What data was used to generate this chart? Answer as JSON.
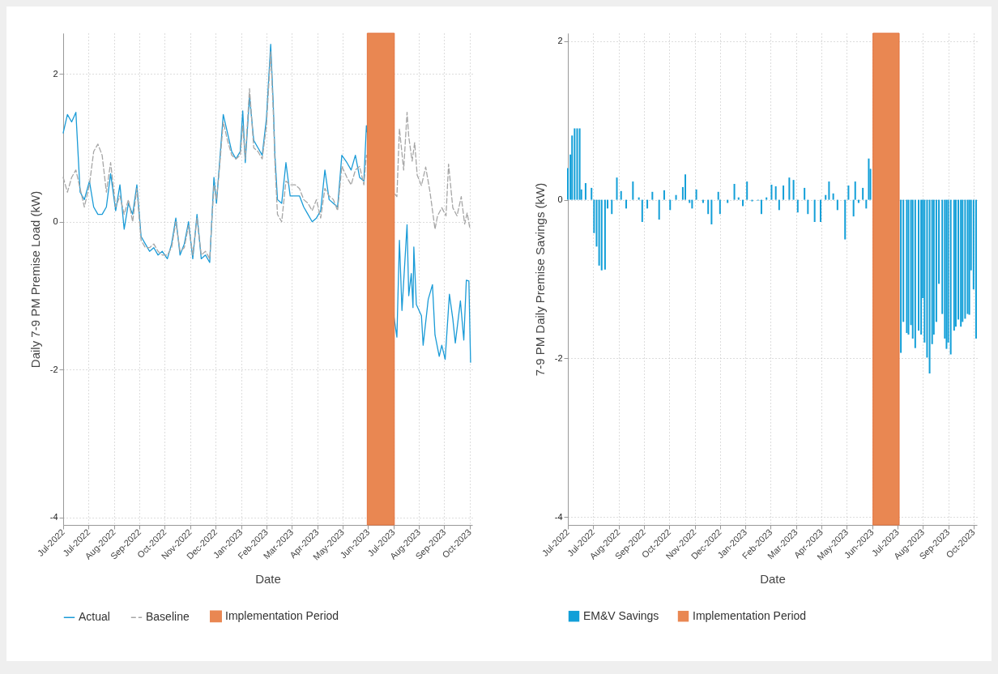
{
  "chart_data": [
    {
      "type": "line",
      "xlabel": "Date",
      "ylabel": "Daily 7-9 PM Premise Load (kW)",
      "xlim": [
        "2022-07-01",
        "2023-10-27"
      ],
      "xticks": [
        {
          "value": "2022-07-01",
          "label": "Jul-2022"
        },
        {
          "value": "2022-07-31",
          "label": "Jul-2022"
        },
        {
          "value": "2022-08-30",
          "label": "Aug-2022"
        },
        {
          "value": "2022-09-29",
          "label": "Sep-2022"
        },
        {
          "value": "2022-10-29",
          "label": "Oct-2022"
        },
        {
          "value": "2022-11-28",
          "label": "Nov-2022"
        },
        {
          "value": "2022-12-28",
          "label": "Dec-2022"
        },
        {
          "value": "2023-01-27",
          "label": "Jan-2023"
        },
        {
          "value": "2023-02-26",
          "label": "Feb-2023"
        },
        {
          "value": "2023-03-28",
          "label": "Mar-2023"
        },
        {
          "value": "2023-04-27",
          "label": "Apr-2023"
        },
        {
          "value": "2023-05-27",
          "label": "May-2023"
        },
        {
          "value": "2023-06-26",
          "label": "Jun-2023"
        },
        {
          "value": "2023-07-26",
          "label": "Jul-2023"
        },
        {
          "value": "2023-08-25",
          "label": "Aug-2023"
        },
        {
          "value": "2023-09-24",
          "label": "Sep-2023"
        },
        {
          "value": "2023-10-24",
          "label": "Oct-2023"
        }
      ],
      "ylim": [
        -4.1,
        2.55
      ],
      "yticks": [
        -4,
        -2,
        0,
        2
      ],
      "grid": true,
      "legend": "bottom",
      "series": [
        {
          "name": "Actual",
          "color": "#1a9bd7",
          "line_style": "solid",
          "x": [
            "2022-07-01",
            "2022-07-06",
            "2022-07-11",
            "2022-07-16",
            "2022-07-21",
            "2022-07-26",
            "2022-08-01",
            "2022-08-06",
            "2022-08-11",
            "2022-08-16",
            "2022-08-21",
            "2022-08-26",
            "2022-09-01",
            "2022-09-06",
            "2022-09-11",
            "2022-09-16",
            "2022-09-21",
            "2022-09-26",
            "2022-10-01",
            "2022-10-06",
            "2022-10-11",
            "2022-10-16",
            "2022-10-21",
            "2022-10-26",
            "2022-11-01",
            "2022-11-06",
            "2022-11-11",
            "2022-11-16",
            "2022-11-21",
            "2022-11-26",
            "2022-12-01",
            "2022-12-06",
            "2022-12-11",
            "2022-12-16",
            "2022-12-21",
            "2022-12-26",
            "2022-12-29",
            "2023-01-01",
            "2023-01-06",
            "2023-01-11",
            "2023-01-16",
            "2023-01-21",
            "2023-01-26",
            "2023-01-29",
            "2023-02-01",
            "2023-02-06",
            "2023-02-11",
            "2023-02-16",
            "2023-02-21",
            "2023-02-26",
            "2023-03-03",
            "2023-03-06",
            "2023-03-08",
            "2023-03-11",
            "2023-03-16",
            "2023-03-21",
            "2023-03-26",
            "2023-04-01",
            "2023-04-06",
            "2023-04-11",
            "2023-04-16",
            "2023-04-21",
            "2023-04-26",
            "2023-05-01",
            "2023-05-06",
            "2023-05-11",
            "2023-05-16",
            "2023-05-21",
            "2023-05-26",
            "2023-06-01",
            "2023-06-06",
            "2023-06-11",
            "2023-06-16",
            "2023-06-21",
            "2023-06-24",
            "2023-07-30",
            "2023-08-02",
            "2023-08-05",
            "2023-08-11",
            "2023-08-13",
            "2023-08-16",
            "2023-08-18",
            "2023-08-19",
            "2023-08-22",
            "2023-08-28",
            "2023-08-30",
            "2023-09-05",
            "2023-09-10",
            "2023-09-13",
            "2023-09-18",
            "2023-09-21",
            "2023-09-25",
            "2023-09-30",
            "2023-10-04",
            "2023-10-07",
            "2023-10-13",
            "2023-10-17",
            "2023-10-20",
            "2023-10-23",
            "2023-10-25"
          ],
          "values": [
            1.2,
            1.45,
            1.35,
            1.48,
            0.4,
            0.3,
            0.55,
            0.2,
            0.1,
            0.1,
            0.2,
            0.65,
            0.15,
            0.5,
            -0.1,
            0.25,
            0.1,
            0.5,
            -0.2,
            -0.3,
            -0.4,
            -0.35,
            -0.45,
            -0.4,
            -0.5,
            -0.3,
            0.05,
            -0.45,
            -0.3,
            0.0,
            -0.5,
            0.1,
            -0.5,
            -0.45,
            -0.55,
            0.6,
            0.25,
            0.7,
            1.45,
            1.2,
            0.95,
            0.85,
            0.95,
            1.5,
            0.8,
            1.7,
            1.1,
            1.0,
            0.9,
            1.4,
            2.4,
            1.6,
            0.9,
            0.3,
            0.25,
            0.8,
            0.35,
            0.35,
            0.35,
            0.2,
            0.1,
            0.0,
            0.05,
            0.15,
            0.7,
            0.3,
            0.25,
            0.2,
            0.9,
            0.8,
            0.7,
            0.9,
            0.6,
            0.55,
            1.3,
            -1.56,
            -0.25,
            -1.2,
            -0.04,
            -1.0,
            -0.7,
            -1.16,
            -0.34,
            -1.12,
            -1.27,
            -1.67,
            -1.05,
            -0.85,
            -1.53,
            -1.82,
            -1.67,
            -1.86,
            -0.98,
            -1.31,
            -1.64,
            -1.07,
            -1.6,
            -0.79,
            -0.8,
            -1.9
          ]
        },
        {
          "name": "Baseline",
          "color": "#a6a6a6",
          "line_style": "dashed",
          "x": [
            "2022-07-01",
            "2022-07-06",
            "2022-07-11",
            "2022-07-16",
            "2022-07-21",
            "2022-07-26",
            "2022-08-01",
            "2022-08-06",
            "2022-08-11",
            "2022-08-16",
            "2022-08-21",
            "2022-08-26",
            "2022-09-01",
            "2022-09-06",
            "2022-09-11",
            "2022-09-16",
            "2022-09-21",
            "2022-09-26",
            "2022-10-01",
            "2022-10-06",
            "2022-10-11",
            "2022-10-16",
            "2022-10-21",
            "2022-10-26",
            "2022-11-01",
            "2022-11-06",
            "2022-11-11",
            "2022-11-16",
            "2022-11-21",
            "2022-11-26",
            "2022-12-01",
            "2022-12-06",
            "2022-12-11",
            "2022-12-16",
            "2022-12-21",
            "2022-12-26",
            "2022-12-29",
            "2023-01-01",
            "2023-01-06",
            "2023-01-11",
            "2023-01-16",
            "2023-01-21",
            "2023-01-26",
            "2023-01-29",
            "2023-02-01",
            "2023-02-06",
            "2023-02-11",
            "2023-02-16",
            "2023-02-21",
            "2023-02-26",
            "2023-03-03",
            "2023-03-06",
            "2023-03-08",
            "2023-03-11",
            "2023-03-16",
            "2023-03-21",
            "2023-03-26",
            "2023-04-01",
            "2023-04-06",
            "2023-04-11",
            "2023-04-16",
            "2023-04-21",
            "2023-04-26",
            "2023-05-01",
            "2023-05-06",
            "2023-05-11",
            "2023-05-16",
            "2023-05-21",
            "2023-05-26",
            "2023-06-01",
            "2023-06-06",
            "2023-06-11",
            "2023-06-16",
            "2023-06-21",
            "2023-06-24",
            "2023-07-30",
            "2023-08-02",
            "2023-08-07",
            "2023-08-11",
            "2023-08-13",
            "2023-08-17",
            "2023-08-20",
            "2023-08-23",
            "2023-08-28",
            "2023-09-02",
            "2023-09-07",
            "2023-09-13",
            "2023-09-16",
            "2023-09-21",
            "2023-09-26",
            "2023-09-29",
            "2023-10-04",
            "2023-10-09",
            "2023-10-14",
            "2023-10-18",
            "2023-10-21",
            "2023-10-24"
          ],
          "values": [
            0.6,
            0.4,
            0.6,
            0.7,
            0.45,
            0.2,
            0.5,
            0.95,
            1.05,
            0.9,
            0.4,
            0.8,
            0.2,
            0.35,
            0.1,
            0.3,
            0.0,
            0.45,
            -0.25,
            -0.35,
            -0.35,
            -0.3,
            -0.4,
            -0.45,
            -0.45,
            -0.35,
            0.0,
            -0.4,
            -0.35,
            -0.05,
            -0.45,
            0.05,
            -0.45,
            -0.4,
            -0.5,
            0.5,
            0.3,
            0.65,
            1.35,
            1.1,
            0.9,
            0.85,
            0.9,
            1.3,
            0.85,
            1.8,
            1.0,
            0.95,
            0.85,
            1.3,
            2.3,
            1.5,
            0.8,
            0.1,
            0.0,
            0.55,
            0.5,
            0.5,
            0.45,
            0.3,
            0.25,
            0.15,
            0.3,
            0.05,
            0.45,
            0.35,
            0.3,
            0.15,
            0.75,
            0.6,
            0.5,
            0.7,
            0.75,
            0.5,
            0.9,
            0.34,
            1.26,
            0.7,
            1.48,
            1.15,
            0.82,
            1.07,
            0.63,
            0.49,
            0.74,
            0.41,
            -0.1,
            0.08,
            0.19,
            0.08,
            0.78,
            0.19,
            0.08,
            0.34,
            -0.03,
            0.12,
            -0.08
          ]
        }
      ],
      "bands": [
        {
          "axis": "x",
          "from": "2023-06-25",
          "to": "2023-07-27",
          "label": "Implementation Period",
          "color": "#e98752"
        }
      ]
    },
    {
      "type": "bar",
      "xlabel": "Date",
      "ylabel": "7-9 PM Daily Premise Savings (kW)",
      "xlim": [
        "2022-07-01",
        "2023-10-28"
      ],
      "xticks": [
        {
          "value": "2022-07-01",
          "label": "Jul-2022"
        },
        {
          "value": "2022-07-31",
          "label": "Jul-2022"
        },
        {
          "value": "2022-08-30",
          "label": "Aug-2022"
        },
        {
          "value": "2022-09-29",
          "label": "Sep-2022"
        },
        {
          "value": "2022-10-29",
          "label": "Oct-2022"
        },
        {
          "value": "2022-11-28",
          "label": "Nov-2022"
        },
        {
          "value": "2022-12-28",
          "label": "Dec-2022"
        },
        {
          "value": "2023-01-27",
          "label": "Jan-2023"
        },
        {
          "value": "2023-02-26",
          "label": "Feb-2023"
        },
        {
          "value": "2023-03-28",
          "label": "Mar-2023"
        },
        {
          "value": "2023-04-27",
          "label": "Apr-2023"
        },
        {
          "value": "2023-05-27",
          "label": "May-2023"
        },
        {
          "value": "2023-06-26",
          "label": "Jun-2023"
        },
        {
          "value": "2023-07-26",
          "label": "Jul-2023"
        },
        {
          "value": "2023-08-25",
          "label": "Aug-2023"
        },
        {
          "value": "2023-09-24",
          "label": "Sep-2023"
        },
        {
          "value": "2023-10-24",
          "label": "Oct-2023"
        }
      ],
      "ylim": [
        -4.1,
        2.1
      ],
      "yticks": [
        -4,
        -2,
        0,
        2
      ],
      "grid": true,
      "legend": "bottom",
      "series": [
        {
          "name": "EM&V Savings",
          "color": "#129fd8",
          "x": [
            "2022-07-01",
            "2022-07-04",
            "2022-07-06",
            "2022-07-09",
            "2022-07-12",
            "2022-07-15",
            "2022-07-17",
            "2022-07-22",
            "2022-07-29",
            "2022-08-01",
            "2022-08-04",
            "2022-08-07",
            "2022-08-10",
            "2022-08-14",
            "2022-08-17",
            "2022-08-22",
            "2022-08-28",
            "2022-09-02",
            "2022-09-08",
            "2022-09-16",
            "2022-09-23",
            "2022-09-27",
            "2022-10-03",
            "2022-10-09",
            "2022-10-17",
            "2022-10-23",
            "2022-10-30",
            "2022-11-06",
            "2022-11-14",
            "2022-11-17",
            "2022-11-22",
            "2022-11-25",
            "2022-11-30",
            "2022-12-08",
            "2022-12-14",
            "2022-12-18",
            "2022-12-26",
            "2022-12-28",
            "2023-01-06",
            "2023-01-14",
            "2023-01-19",
            "2023-01-24",
            "2023-01-29",
            "2023-02-04",
            "2023-02-11",
            "2023-02-15",
            "2023-02-21",
            "2023-02-27",
            "2023-03-04",
            "2023-03-08",
            "2023-03-13",
            "2023-03-20",
            "2023-03-25",
            "2023-03-30",
            "2023-04-07",
            "2023-04-11",
            "2023-04-19",
            "2023-04-26",
            "2023-05-02",
            "2023-05-06",
            "2023-05-11",
            "2023-05-16",
            "2023-05-25",
            "2023-05-29",
            "2023-06-04",
            "2023-06-06",
            "2023-06-10",
            "2023-06-15",
            "2023-06-19",
            "2023-06-22",
            "2023-06-24",
            "2023-07-30",
            "2023-08-02",
            "2023-08-06",
            "2023-08-08",
            "2023-08-11",
            "2023-08-13",
            "2023-08-16",
            "2023-08-20",
            "2023-08-23",
            "2023-08-25",
            "2023-08-27",
            "2023-08-30",
            "2023-09-02",
            "2023-09-05",
            "2023-09-07",
            "2023-09-10",
            "2023-09-13",
            "2023-09-17",
            "2023-09-20",
            "2023-09-22",
            "2023-09-24",
            "2023-09-27",
            "2023-10-01",
            "2023-10-03",
            "2023-10-06",
            "2023-10-09",
            "2023-10-11",
            "2023-10-14",
            "2023-10-17",
            "2023-10-19",
            "2023-10-21",
            "2023-10-24",
            "2023-10-27"
          ],
          "values": [
            0.4,
            0.57,
            0.81,
            0.9,
            0.9,
            0.9,
            0.13,
            0.21,
            0.15,
            -0.42,
            -0.59,
            -0.83,
            -0.89,
            -0.88,
            -0.11,
            -0.18,
            0.28,
            0.11,
            -0.11,
            0.23,
            0.03,
            -0.28,
            -0.11,
            0.1,
            -0.25,
            0.12,
            -0.13,
            0.06,
            0.16,
            0.32,
            -0.04,
            -0.11,
            0.13,
            -0.04,
            -0.18,
            -0.31,
            0.1,
            -0.18,
            -0.04,
            0.2,
            0.03,
            -0.08,
            0.23,
            -0.02,
            -0.01,
            -0.18,
            0.03,
            0.19,
            0.17,
            -0.13,
            0.18,
            0.28,
            0.25,
            -0.16,
            0.15,
            -0.18,
            -0.28,
            -0.28,
            0.06,
            0.23,
            0.08,
            -0.13,
            -0.5,
            0.18,
            -0.21,
            0.23,
            -0.04,
            0.15,
            -0.11,
            0.52,
            0.39,
            -1.93,
            -1.54,
            -1.68,
            -1.7,
            -1.58,
            -1.75,
            -1.87,
            -1.65,
            -1.7,
            -1.24,
            -1.8,
            -1.99,
            -2.19,
            -1.82,
            -1.7,
            -1.54,
            -1.06,
            -1.44,
            -1.75,
            -1.88,
            -1.8,
            -1.95,
            -1.65,
            -1.6,
            -1.51,
            -1.6,
            -1.54,
            -1.5,
            -1.44,
            -1.45,
            -0.89,
            -1.13,
            -1.75
          ]
        }
      ],
      "bands": [
        {
          "axis": "x",
          "from": "2023-06-27",
          "to": "2023-07-28",
          "label": "Implementation Period",
          "color": "#e98752"
        }
      ]
    }
  ]
}
